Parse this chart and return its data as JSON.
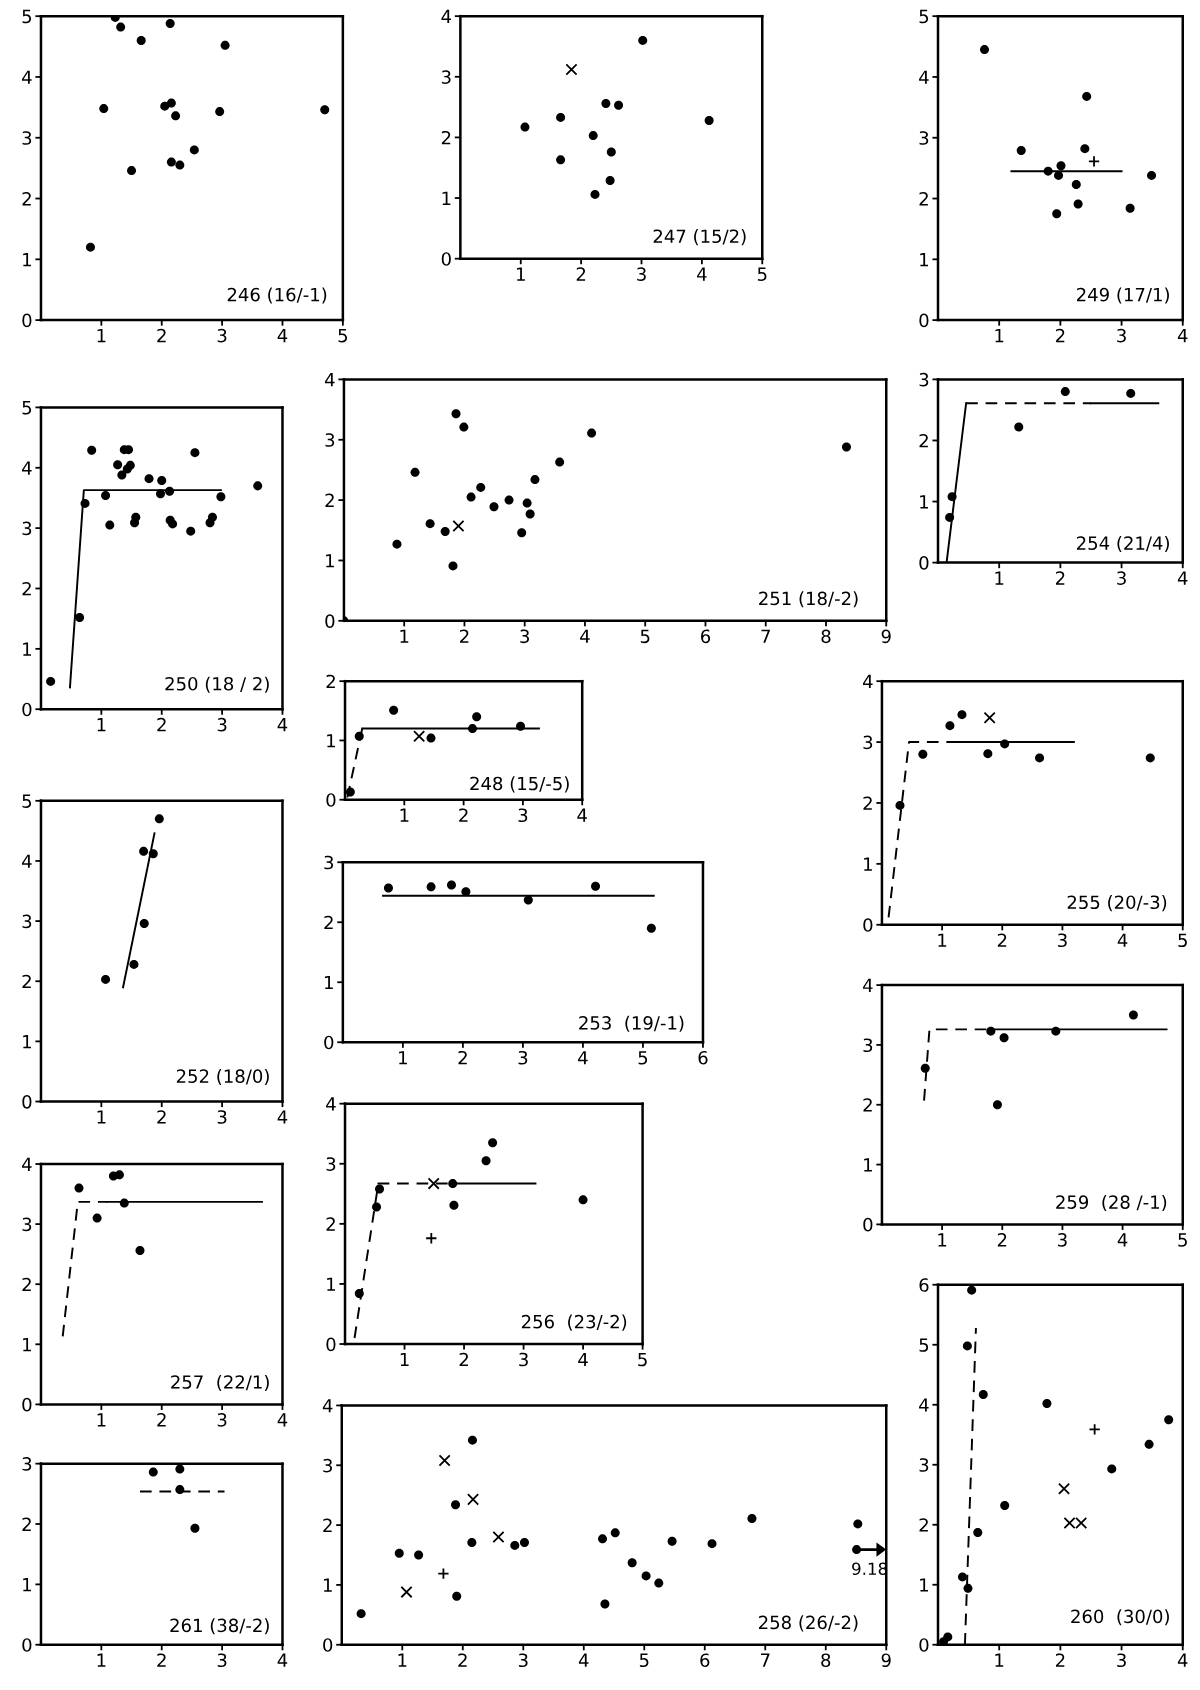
{
  "chart_data": [
    {
      "type": "scatter",
      "xlim": [
        0,
        5
      ],
      "ylim": [
        0,
        5
      ],
      "xticks": [
        1,
        2,
        3,
        4,
        5
      ],
      "yticks": [
        0,
        1,
        2,
        3,
        4,
        5
      ],
      "annotations": [
        "246 (16/-1)"
      ],
      "series": [
        {
          "type": "scatter",
          "marker": "circle",
          "color": "#000000",
          "x": [
            0.82,
            1.04,
            1.23,
            1.32,
            1.5,
            1.66,
            2.05,
            2.14,
            2.16,
            2.16,
            2.23,
            2.3,
            2.54,
            2.96,
            3.05,
            4.7
          ],
          "values": [
            1.2,
            3.48,
            4.98,
            4.82,
            2.46,
            4.6,
            3.52,
            4.88,
            3.57,
            2.6,
            3.36,
            2.55,
            2.8,
            3.43,
            4.52,
            3.46
          ]
        }
      ]
    },
    {
      "type": "scatter",
      "xlim": [
        0,
        5
      ],
      "ylim": [
        0,
        4
      ],
      "xticks": [
        1,
        2,
        3,
        4,
        5
      ],
      "yticks": [
        0,
        1,
        2,
        3,
        4
      ],
      "annotations": [
        "247 (15/2)"
      ],
      "series": [
        {
          "type": "scatter",
          "marker": "circle",
          "color": "#000000",
          "x": [
            1.07,
            1.66,
            1.66,
            2.2,
            2.23,
            2.41,
            2.5,
            2.48,
            2.62,
            3.02,
            4.12
          ],
          "values": [
            2.17,
            2.33,
            1.63,
            2.03,
            1.06,
            2.56,
            1.76,
            1.29,
            2.53,
            3.6,
            2.28
          ]
        },
        {
          "type": "scatter",
          "marker": "cross",
          "color": "#000000",
          "x": [
            1.84
          ],
          "values": [
            3.12
          ]
        }
      ]
    },
    {
      "type": "scatter",
      "xlim": [
        0,
        4
      ],
      "ylim": [
        0,
        5
      ],
      "xticks": [
        1,
        2,
        3,
        4
      ],
      "yticks": [
        0,
        1,
        2,
        3,
        4,
        5
      ],
      "annotations": [
        "249 (17/1)"
      ],
      "series": [
        {
          "type": "scatter",
          "marker": "circle",
          "color": "#000000",
          "x": [
            0.76,
            1.36,
            1.8,
            2.01,
            1.97,
            1.94,
            2.26,
            2.29,
            2.4,
            2.43,
            3.14,
            3.49
          ],
          "values": [
            4.45,
            2.79,
            2.45,
            2.54,
            2.38,
            1.75,
            2.23,
            1.91,
            2.82,
            3.68,
            1.84,
            2.38
          ]
        },
        {
          "type": "scatter",
          "marker": "plus",
          "color": "#000000",
          "x": [
            2.55
          ],
          "values": [
            2.61
          ]
        },
        {
          "type": "line",
          "line_style": "solid",
          "color": "#000000",
          "x": [
            1.2,
            3.0
          ],
          "values": [
            2.45,
            2.45
          ]
        }
      ]
    },
    {
      "type": "scatter",
      "xlim": [
        0,
        9
      ],
      "ylim": [
        0,
        4
      ],
      "xticks": [
        1,
        2,
        3,
        4,
        5,
        6,
        7,
        8,
        9
      ],
      "yticks": [
        0,
        1,
        2,
        3,
        4
      ],
      "annotations": [
        "251 (18/-2)"
      ],
      "series": [
        {
          "type": "scatter",
          "marker": "circle",
          "color": "#000000",
          "x": [
            0.0,
            0.88,
            1.18,
            1.43,
            1.68,
            1.81,
            1.86,
            1.99,
            2.11,
            2.27,
            2.49,
            2.74,
            2.95,
            3.04,
            3.09,
            3.17,
            3.58,
            4.11,
            8.34
          ],
          "values": [
            0.0,
            1.27,
            2.46,
            1.61,
            1.48,
            0.91,
            3.43,
            3.21,
            2.05,
            2.21,
            1.89,
            2.0,
            1.46,
            1.95,
            1.77,
            2.34,
            2.63,
            3.11,
            2.88
          ]
        },
        {
          "type": "scatter",
          "marker": "cross",
          "color": "#000000",
          "x": [
            1.9
          ],
          "values": [
            1.57
          ]
        }
      ]
    },
    {
      "type": "scatter",
      "xlim": [
        0,
        4
      ],
      "ylim": [
        0,
        3
      ],
      "xticks": [
        1,
        2,
        3,
        4
      ],
      "yticks": [
        0,
        1,
        2,
        3
      ],
      "annotations": [
        "254 (21/4)"
      ],
      "series": [
        {
          "type": "scatter",
          "marker": "circle",
          "color": "#000000",
          "x": [
            0.23,
            0.19,
            1.32,
            2.08,
            3.15
          ],
          "values": [
            1.08,
            0.74,
            2.22,
            2.8,
            2.77
          ]
        },
        {
          "type": "line",
          "line_style": "solid",
          "color": "#000000",
          "x": [
            0.14,
            0.46
          ],
          "values": [
            0,
            2.61
          ]
        },
        {
          "type": "line",
          "line_style": "dashed",
          "color": "#000000",
          "x": [
            0.46,
            2.5
          ],
          "values": [
            2.61,
            2.61
          ]
        },
        {
          "type": "line",
          "line_style": "solid",
          "color": "#000000",
          "x": [
            2.5,
            3.6
          ],
          "values": [
            2.61,
            2.61
          ]
        }
      ]
    },
    {
      "type": "scatter",
      "xlim": [
        0,
        4
      ],
      "ylim": [
        0,
        5
      ],
      "xticks": [
        1,
        2,
        3,
        4
      ],
      "yticks": [
        0,
        1,
        2,
        3,
        4,
        5
      ],
      "annotations": [
        "250 (18 / 2)"
      ],
      "series": [
        {
          "type": "scatter",
          "marker": "circle",
          "color": "#000000",
          "x": [
            0.16,
            0.64,
            0.73,
            0.84,
            1.07,
            1.14,
            1.27,
            1.34,
            1.38,
            1.45,
            1.43,
            1.48,
            1.55,
            1.57,
            1.79,
            2.0,
            1.98,
            2.13,
            2.14,
            2.18,
            2.48,
            2.55,
            2.8,
            2.84,
            2.98,
            3.59
          ],
          "values": [
            0.46,
            1.52,
            3.41,
            4.29,
            3.54,
            3.05,
            4.05,
            3.88,
            4.3,
            4.3,
            3.98,
            4.04,
            3.09,
            3.18,
            3.82,
            3.79,
            3.57,
            3.61,
            3.13,
            3.07,
            2.95,
            4.25,
            3.09,
            3.18,
            3.52,
            3.7
          ]
        },
        {
          "type": "line",
          "line_style": "solid",
          "color": "#000000",
          "x": [
            0.48,
            0.71,
            2.98
          ],
          "values": [
            0.36,
            3.63,
            3.63
          ]
        }
      ]
    },
    {
      "type": "scatter",
      "xlim": [
        0,
        4
      ],
      "ylim": [
        0,
        2
      ],
      "xticks": [
        1,
        2,
        3,
        4
      ],
      "yticks": [
        0,
        1,
        2
      ],
      "annotations": [
        "248 (15/-5)"
      ],
      "series": [
        {
          "type": "scatter",
          "marker": "circle",
          "color": "#000000",
          "x": [
            0.09,
            0.24,
            0.82,
            1.45,
            2.15,
            2.22,
            2.96
          ],
          "values": [
            0.13,
            1.07,
            1.51,
            1.04,
            1.2,
            1.4,
            1.24
          ]
        },
        {
          "type": "scatter",
          "marker": "cross",
          "color": "#000000",
          "x": [
            1.25
          ],
          "values": [
            1.07
          ]
        },
        {
          "type": "line",
          "line_style": "dashed",
          "color": "#000000",
          "x": [
            0.04,
            0.29
          ],
          "values": [
            0.04,
            1.2
          ]
        },
        {
          "type": "line",
          "line_style": "solid",
          "color": "#000000",
          "x": [
            0.29,
            3.27
          ],
          "values": [
            1.2,
            1.2
          ]
        }
      ]
    },
    {
      "type": "scatter",
      "xlim": [
        0,
        5
      ],
      "ylim": [
        0,
        4
      ],
      "xticks": [
        1,
        2,
        3,
        4,
        5
      ],
      "yticks": [
        0,
        1,
        2,
        3,
        4
      ],
      "annotations": [
        "255 (20/-3)"
      ],
      "series": [
        {
          "type": "scatter",
          "marker": "circle",
          "color": "#000000",
          "x": [
            0.3,
            0.68,
            1.13,
            1.33,
            1.76,
            2.04,
            2.62,
            4.46
          ],
          "values": [
            1.96,
            2.8,
            3.27,
            3.45,
            2.81,
            2.97,
            2.74,
            2.74
          ]
        },
        {
          "type": "scatter",
          "marker": "cross",
          "color": "#000000",
          "x": [
            1.79
          ],
          "values": [
            3.4
          ]
        },
        {
          "type": "line",
          "line_style": "dashed",
          "color": "#000000",
          "x": [
            0.11,
            0.45,
            1.2
          ],
          "values": [
            0.12,
            3.0,
            3.0
          ]
        },
        {
          "type": "line",
          "line_style": "solid",
          "color": "#000000",
          "x": [
            1.2,
            3.19
          ],
          "values": [
            3.0,
            3.0
          ]
        }
      ]
    },
    {
      "type": "scatter",
      "xlim": [
        0,
        4
      ],
      "ylim": [
        0,
        5
      ],
      "xticks": [
        1,
        2,
        3,
        4
      ],
      "yticks": [
        0,
        1,
        2,
        3,
        4,
        5
      ],
      "annotations": [
        "252 (18/0)"
      ],
      "series": [
        {
          "type": "scatter",
          "marker": "circle",
          "color": "#000000",
          "x": [
            1.07,
            1.54,
            1.71,
            1.7,
            1.86,
            1.96
          ],
          "values": [
            2.03,
            2.28,
            2.96,
            4.16,
            4.12,
            4.7
          ]
        },
        {
          "type": "line",
          "line_style": "solid",
          "color": "#000000",
          "x": [
            1.36,
            1.88
          ],
          "values": [
            1.9,
            4.46
          ]
        }
      ]
    },
    {
      "type": "scatter",
      "xlim": [
        0,
        6
      ],
      "ylim": [
        0,
        3
      ],
      "xticks": [
        1,
        2,
        3,
        4,
        5,
        6
      ],
      "yticks": [
        0,
        1,
        2,
        3
      ],
      "annotations": [
        "253  (19/-1)"
      ],
      "series": [
        {
          "type": "scatter",
          "marker": "circle",
          "color": "#000000",
          "x": [
            0.76,
            1.47,
            1.81,
            2.05,
            3.09,
            4.21,
            5.14
          ],
          "values": [
            2.57,
            2.59,
            2.62,
            2.51,
            2.37,
            2.6,
            1.9
          ]
        },
        {
          "type": "line",
          "line_style": "solid",
          "color": "#000000",
          "x": [
            0.67,
            5.18
          ],
          "values": [
            2.44,
            2.44
          ]
        }
      ]
    },
    {
      "type": "scatter",
      "xlim": [
        0,
        5
      ],
      "ylim": [
        0,
        4
      ],
      "xticks": [
        1,
        2,
        3,
        4,
        5
      ],
      "yticks": [
        0,
        1,
        2,
        3,
        4
      ],
      "annotations": [
        "259  (28 /-1)"
      ],
      "series": [
        {
          "type": "scatter",
          "marker": "circle",
          "color": "#000000",
          "x": [
            0.72,
            1.81,
            2.03,
            1.92,
            2.89,
            4.18
          ],
          "values": [
            2.61,
            3.23,
            3.12,
            2.0,
            3.23,
            3.5
          ]
        },
        {
          "type": "line",
          "line_style": "dashed",
          "color": "#000000",
          "x": [
            0.7,
            0.79,
            1.83
          ],
          "values": [
            2.07,
            3.26,
            3.26
          ]
        },
        {
          "type": "line",
          "line_style": "solid",
          "color": "#000000",
          "x": [
            1.83,
            4.73
          ],
          "values": [
            3.26,
            3.26
          ]
        }
      ]
    },
    {
      "type": "scatter",
      "xlim": [
        0,
        5
      ],
      "ylim": [
        0,
        4
      ],
      "xticks": [
        1,
        2,
        3,
        4,
        5
      ],
      "yticks": [
        0,
        1,
        2,
        3,
        4
      ],
      "annotations": [
        "256  (23/-2)"
      ],
      "series": [
        {
          "type": "scatter",
          "marker": "circle",
          "color": "#000000",
          "x": [
            0.24,
            0.53,
            0.58,
            1.81,
            1.83,
            2.37,
            2.48,
            4.0
          ],
          "values": [
            0.84,
            2.28,
            2.58,
            2.67,
            2.31,
            3.05,
            3.35,
            2.4
          ]
        },
        {
          "type": "scatter",
          "marker": "cross",
          "color": "#000000",
          "x": [
            1.49
          ],
          "values": [
            2.67
          ]
        },
        {
          "type": "scatter",
          "marker": "plus",
          "color": "#000000",
          "x": [
            1.45
          ],
          "values": [
            1.76
          ]
        },
        {
          "type": "line",
          "line_style": "dashed",
          "color": "#000000",
          "x": [
            0.16,
            0.56,
            1.81
          ],
          "values": [
            0.1,
            2.67,
            2.67
          ]
        },
        {
          "type": "line",
          "line_style": "solid",
          "color": "#000000",
          "x": [
            1.81,
            3.2
          ],
          "values": [
            2.67,
            2.67
          ]
        }
      ]
    },
    {
      "type": "scatter",
      "xlim": [
        0,
        4
      ],
      "ylim": [
        0,
        4
      ],
      "xticks": [
        1,
        2,
        3,
        4
      ],
      "yticks": [
        0,
        1,
        2,
        3,
        4
      ],
      "annotations": [
        "257  (22/1)"
      ],
      "series": [
        {
          "type": "scatter",
          "marker": "circle",
          "color": "#000000",
          "x": [
            0.63,
            0.93,
            1.2,
            1.3,
            1.38,
            1.64
          ],
          "values": [
            3.6,
            3.1,
            3.8,
            3.82,
            3.35,
            2.56
          ]
        },
        {
          "type": "line",
          "line_style": "dashed",
          "color": "#000000",
          "x": [
            0.36,
            0.61,
            1.1
          ],
          "values": [
            1.13,
            3.37,
            3.37
          ]
        },
        {
          "type": "line",
          "line_style": "solid",
          "color": "#000000",
          "x": [
            1.1,
            3.66
          ],
          "values": [
            3.37,
            3.37
          ]
        }
      ]
    },
    {
      "type": "scatter",
      "xlim": [
        0,
        4
      ],
      "ylim": [
        0,
        6
      ],
      "xticks": [
        1,
        2,
        3,
        4
      ],
      "yticks": [
        0,
        1,
        2,
        3,
        4,
        5,
        6
      ],
      "annotations": [
        "260  (30/0)"
      ],
      "series": [
        {
          "type": "scatter",
          "marker": "circle",
          "color": "#000000",
          "x": [
            0.09,
            0.16,
            0.4,
            0.49,
            0.48,
            0.55,
            0.65,
            0.74,
            1.09,
            1.78,
            2.84,
            3.45,
            3.77
          ],
          "values": [
            0.05,
            0.13,
            1.13,
            0.94,
            4.98,
            5.91,
            1.87,
            4.17,
            2.32,
            4.02,
            2.93,
            3.34,
            3.75
          ]
        },
        {
          "type": "scatter",
          "marker": "cross",
          "color": "#000000",
          "x": [
            2.06,
            2.15,
            2.34
          ],
          "values": [
            2.6,
            2.03,
            2.03
          ]
        },
        {
          "type": "scatter",
          "marker": "plus",
          "color": "#000000",
          "x": [
            2.56
          ],
          "values": [
            3.59
          ]
        },
        {
          "type": "line",
          "line_style": "dashed",
          "color": "#000000",
          "x": [
            0.44,
            0.62
          ],
          "values": [
            0,
            5.28
          ]
        }
      ]
    },
    {
      "type": "scatter",
      "xlim": [
        0,
        9
      ],
      "ylim": [
        0,
        4
      ],
      "xticks": [
        1,
        2,
        3,
        4,
        5,
        6,
        7,
        8,
        9
      ],
      "yticks": [
        0,
        1,
        2,
        3,
        4
      ],
      "annotations": [
        "258 (26/-2)",
        {
          "text": "9.18",
          "x": 8.51,
          "y": 1.59
        }
      ],
      "series": [
        {
          "type": "scatter",
          "marker": "circle",
          "color": "#000000",
          "x": [
            0.32,
            0.95,
            1.27,
            1.88,
            1.9,
            2.16,
            2.15,
            2.86,
            3.02,
            4.31,
            4.35,
            4.52,
            4.8,
            5.03,
            5.24,
            5.46,
            6.12,
            6.78,
            8.53,
            8.51
          ],
          "values": [
            0.52,
            1.53,
            1.5,
            2.34,
            0.81,
            3.42,
            1.71,
            1.66,
            1.71,
            1.77,
            0.68,
            1.87,
            1.37,
            1.15,
            1.03,
            1.73,
            1.69,
            2.11,
            2.02,
            1.59
          ]
        },
        {
          "type": "scatter",
          "marker": "cross",
          "color": "#000000",
          "x": [
            1.07,
            1.7,
            2.17,
            2.59
          ],
          "values": [
            0.88,
            3.08,
            2.43,
            1.8
          ]
        },
        {
          "type": "scatter",
          "marker": "plus",
          "color": "#000000",
          "x": [
            1.68
          ],
          "values": [
            1.19
          ]
        }
      ]
    },
    {
      "type": "scatter",
      "xlim": [
        0,
        4
      ],
      "ylim": [
        0,
        3
      ],
      "xticks": [
        1,
        2,
        3,
        4
      ],
      "yticks": [
        0,
        1,
        2,
        3
      ],
      "annotations": [
        "261 (38/-2)"
      ],
      "series": [
        {
          "type": "scatter",
          "marker": "circle",
          "color": "#000000",
          "x": [
            1.86,
            2.3,
            2.3,
            2.55
          ],
          "values": [
            2.86,
            2.91,
            2.57,
            1.93
          ]
        },
        {
          "type": "line",
          "line_style": "dashed",
          "color": "#000000",
          "x": [
            1.64,
            3.04
          ],
          "values": [
            2.54,
            2.54
          ]
        }
      ]
    }
  ]
}
